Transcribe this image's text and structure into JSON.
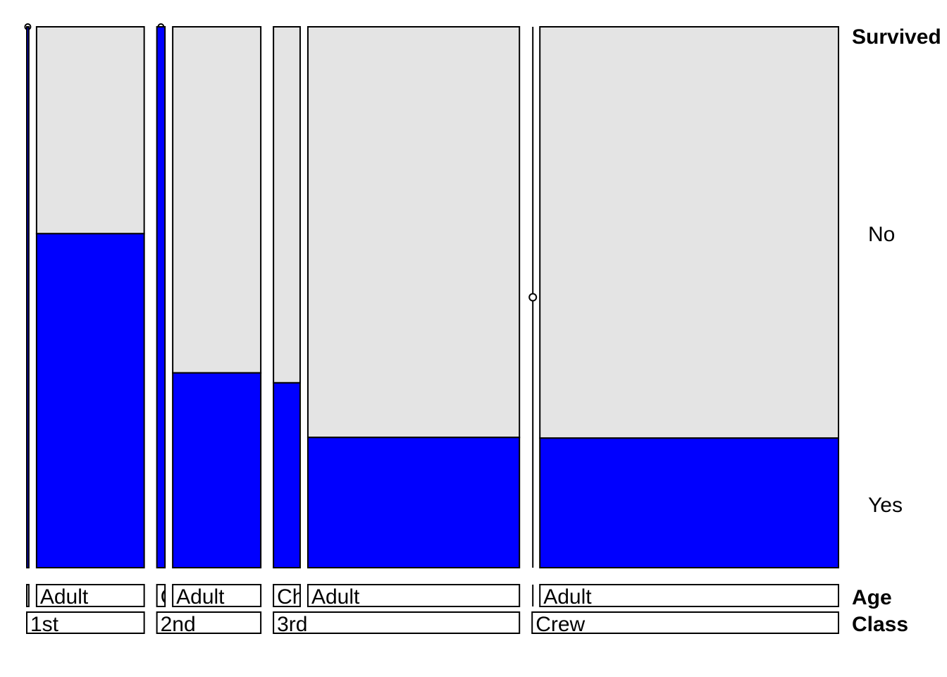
{
  "chart_data": {
    "type": "mosaic",
    "dimensions": {
      "survived": {
        "title": "Survived",
        "levels": [
          "Yes",
          "No"
        ]
      },
      "age": {
        "title": "Age",
        "levels": [
          "Child",
          "Adult"
        ]
      },
      "class": {
        "title": "Class",
        "levels": [
          "1st",
          "2nd",
          "3rd",
          "Crew"
        ]
      }
    },
    "counts": [
      {
        "class": "1st",
        "age": "Child",
        "yes": 6,
        "no": 0
      },
      {
        "class": "1st",
        "age": "Adult",
        "yes": 197,
        "no": 122
      },
      {
        "class": "2nd",
        "age": "Child",
        "yes": 24,
        "no": 0
      },
      {
        "class": "2nd",
        "age": "Adult",
        "yes": 94,
        "no": 167
      },
      {
        "class": "3rd",
        "age": "Child",
        "yes": 27,
        "no": 52
      },
      {
        "class": "3rd",
        "age": "Adult",
        "yes": 151,
        "no": 476
      },
      {
        "class": "Crew",
        "age": "Child",
        "yes": 0,
        "no": 0
      },
      {
        "class": "Crew",
        "age": "Adult",
        "yes": 212,
        "no": 673
      }
    ],
    "age_tick_labels": [
      "",
      "Adult",
      "C",
      "Adult",
      "Ch",
      "Adult",
      "",
      "Adult"
    ],
    "colors": {
      "yes": "#0000ff",
      "no": "#e4e4e4",
      "stroke": "#000000",
      "background": "#ffffff"
    }
  }
}
